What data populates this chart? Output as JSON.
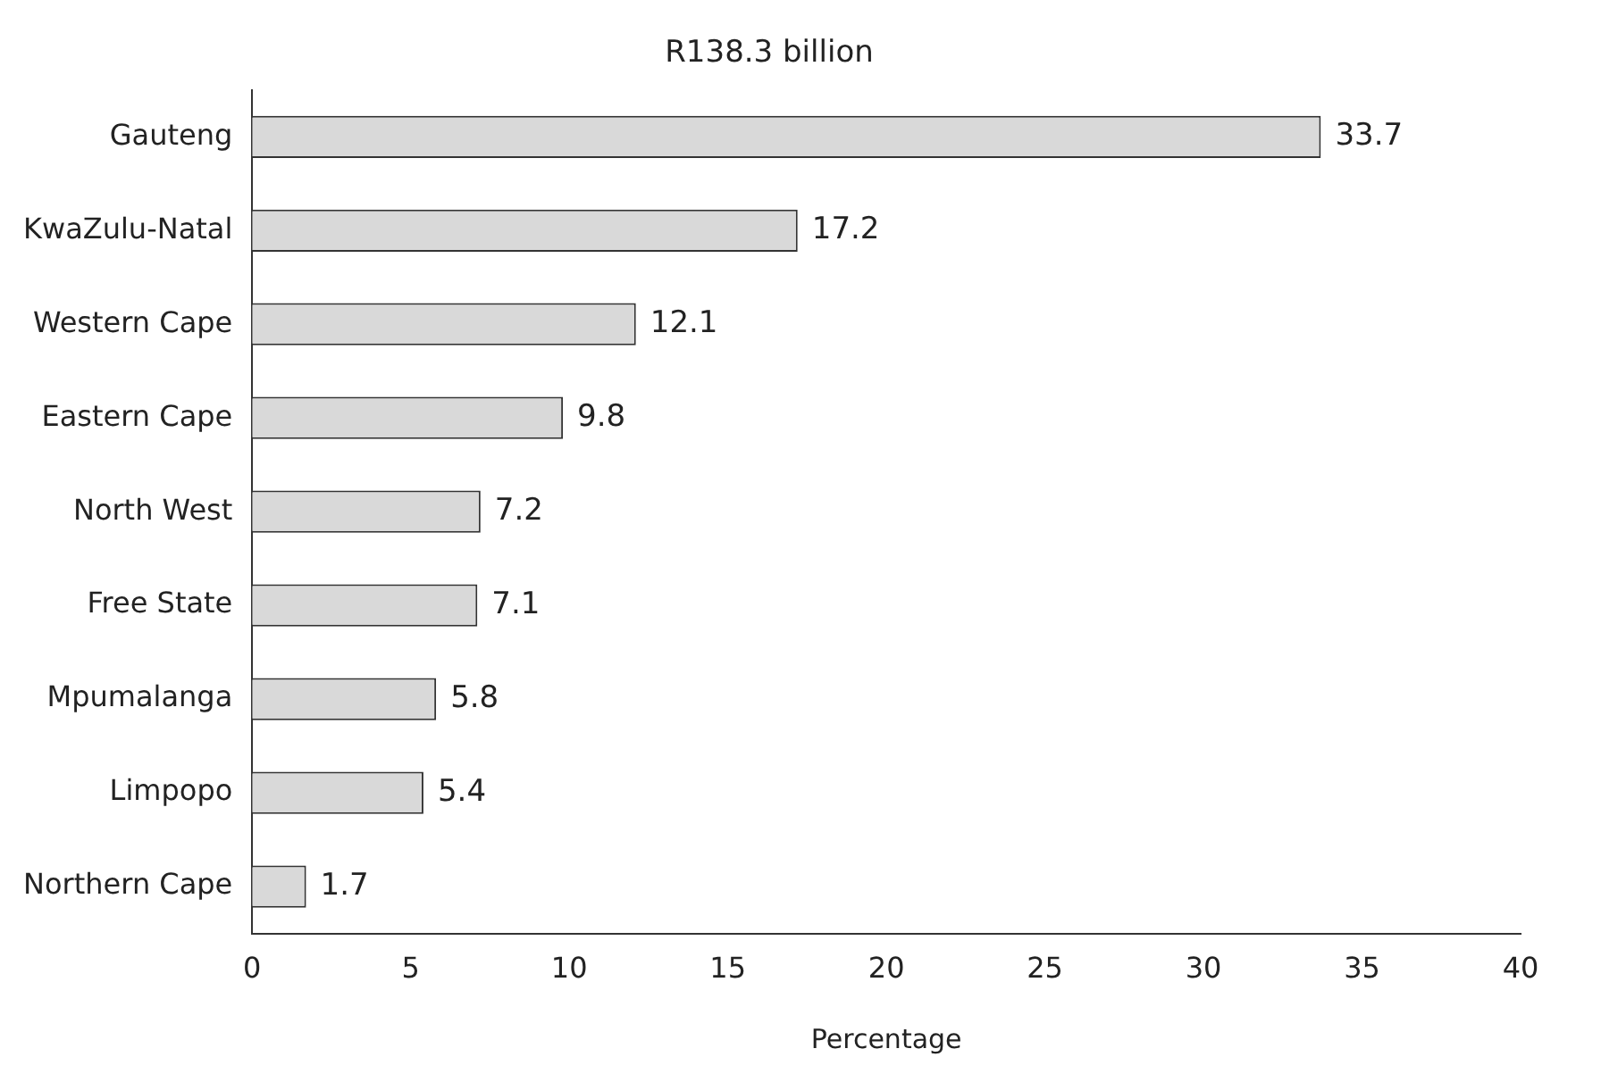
{
  "chart_data": {
    "type": "bar",
    "orientation": "horizontal",
    "title": "R138.3 billion",
    "xlabel": "Percentage",
    "categories": [
      "Gauteng",
      "KwaZulu-Natal",
      "Western Cape",
      "Eastern Cape",
      "North West",
      "Free State",
      "Mpumalanga",
      "Limpopo",
      "Northern Cape"
    ],
    "values": [
      33.7,
      17.2,
      12.1,
      9.8,
      7.2,
      7.1,
      5.8,
      5.4,
      1.7
    ],
    "color": "#d9d9d9",
    "xlim": [
      0,
      40
    ],
    "xticks": [
      0,
      5,
      10,
      15,
      20,
      25,
      30,
      35,
      40
    ],
    "data_labels": true,
    "grid": false,
    "legend": false
  }
}
